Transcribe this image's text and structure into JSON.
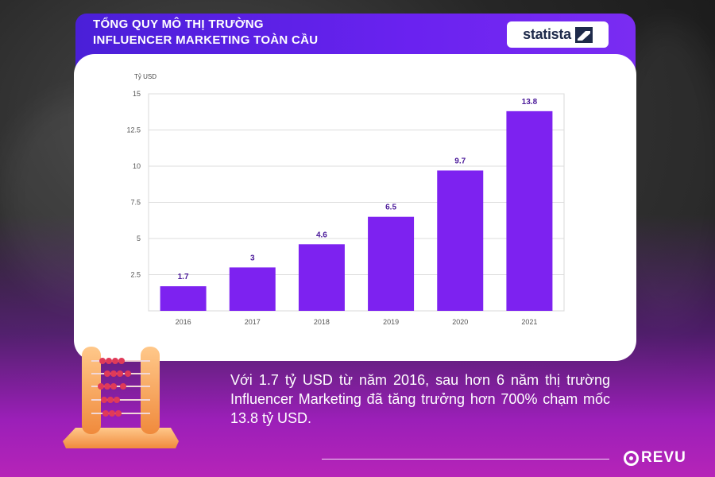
{
  "title": {
    "line1": "TỔNG QUY MÔ THỊ TRƯỜNG",
    "line2": "INFLUENCER MARKETING TOÀN CẦU"
  },
  "logo": {
    "text": "statista",
    "icon": "statista-mark-icon"
  },
  "chart_data": {
    "type": "bar",
    "ylabel": "Tỷ USD",
    "xlabel": "",
    "categories": [
      "2016",
      "2017",
      "2018",
      "2019",
      "2020",
      "2021"
    ],
    "values": [
      1.7,
      3,
      4.6,
      6.5,
      9.7,
      13.8
    ],
    "value_labels": [
      "1.7",
      "3",
      "4.6",
      "6.5",
      "9.7",
      "13.8"
    ],
    "ylim": [
      0,
      15
    ],
    "yticks": [
      2.5,
      5,
      7.5,
      10,
      12.5,
      15
    ],
    "ytick_labels": [
      "2.5",
      "5",
      "7.5",
      "10",
      "12.5",
      "15"
    ],
    "grid": true,
    "bar_color": "#7d22f0",
    "label_color": "#4b1a9a"
  },
  "caption": "Với 1.7 tỷ USD từ năm 2016, sau hơn 6 năm thị trường Influencer Marketing đã tăng trưởng hơn 700% chạm mốc 13.8 tỷ USD.",
  "brand": {
    "name": "REVU"
  }
}
